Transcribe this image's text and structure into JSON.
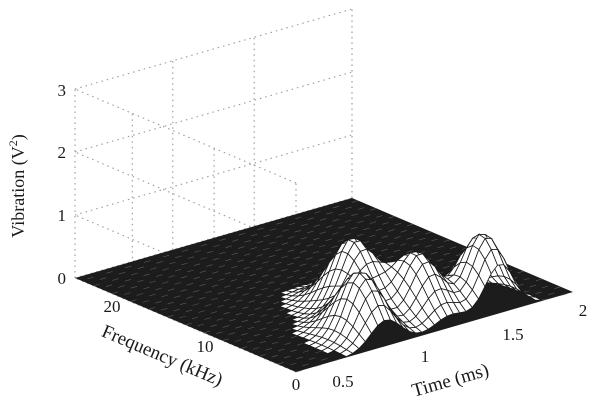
{
  "chart_data": {
    "type": "surface",
    "x_axis": {
      "label": "Time (ms)",
      "range": [
        0.3,
        2.0
      ],
      "ticks": [
        "0.5",
        "1",
        "1.5",
        "2"
      ],
      "tick_values": [
        0.5,
        1,
        1.5,
        2
      ]
    },
    "y_axis": {
      "label": "Frequency (kHz)",
      "range": [
        0,
        27
      ],
      "ticks": [
        "0",
        "10",
        "20"
      ],
      "tick_values": [
        0,
        10,
        20
      ]
    },
    "z_axis": {
      "label_text": "Vibration (V",
      "label_superscript": "2",
      "label_close": ")",
      "range": [
        0,
        3
      ],
      "ticks": [
        "0",
        "1",
        "2",
        "3"
      ],
      "tick_values": [
        0,
        1,
        2,
        3
      ]
    },
    "grid": true,
    "peaks": [
      {
        "time_ms": 0.85,
        "frequency_khz": 3,
        "vibration": 1.0
      },
      {
        "time_ms": 1.05,
        "frequency_khz": 8,
        "vibration": 1.1
      },
      {
        "time_ms": 1.25,
        "frequency_khz": 4,
        "vibration": 0.95
      },
      {
        "time_ms": 1.55,
        "frequency_khz": 2,
        "vibration": 1.15
      }
    ]
  }
}
